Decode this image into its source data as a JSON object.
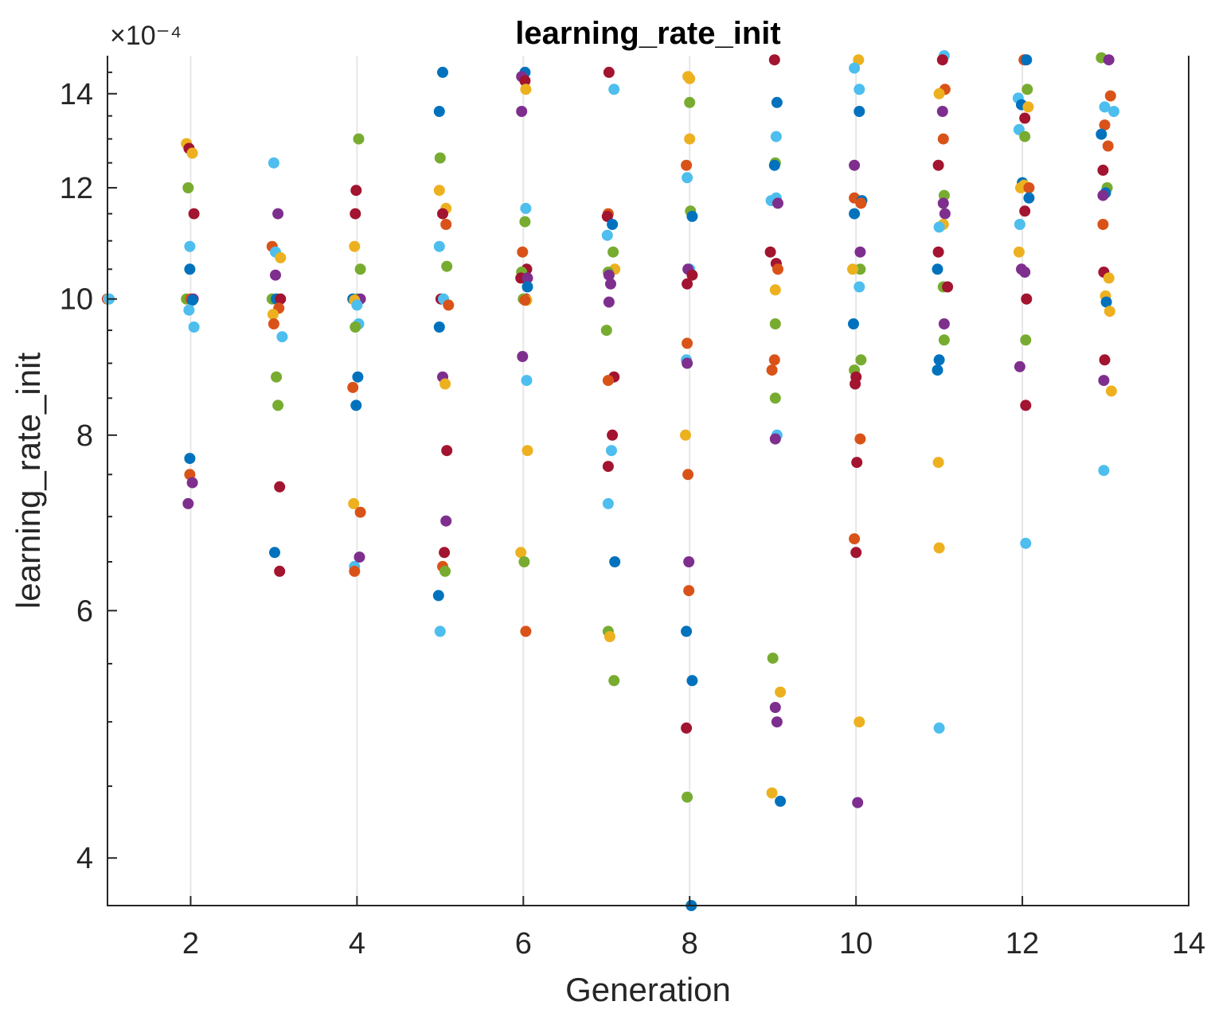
{
  "chart_data": {
    "type": "scatter",
    "title": "learning_rate_init",
    "xlabel": "Generation",
    "ylabel": "learning_rate_init",
    "exponent_label": "×10⁻⁴",
    "y_scale": "log",
    "xlim": [
      1,
      14
    ],
    "ylim": [
      3.7,
      14.9
    ],
    "x_ticks": [
      2,
      4,
      6,
      8,
      10,
      12,
      14
    ],
    "x_tick_labels": [
      "2",
      "4",
      "6",
      "8",
      "10",
      "12",
      "14"
    ],
    "y_ticks": [
      4,
      6,
      8,
      10,
      12,
      14
    ],
    "y_tick_labels": [
      "4",
      "6",
      "8",
      "10",
      "12",
      "14"
    ],
    "grid": "x-major",
    "colors": [
      "#0072BD",
      "#D95319",
      "#EDB120",
      "#7E2F8E",
      "#77AC30",
      "#4DBEEE",
      "#A2142F"
    ],
    "points": [
      [
        1.0,
        10.0,
        6
      ],
      [
        1.01,
        10.0,
        2
      ],
      [
        1.02,
        10.0,
        5
      ],
      [
        1.95,
        12.9,
        2
      ],
      [
        1.98,
        12.8,
        6
      ],
      [
        2.02,
        12.7,
        2
      ],
      [
        1.97,
        12.0,
        4
      ],
      [
        2.04,
        11.5,
        6
      ],
      [
        1.99,
        10.9,
        5
      ],
      [
        1.99,
        10.5,
        0
      ],
      [
        1.95,
        10.0,
        4
      ],
      [
        2.0,
        10.0,
        1
      ],
      [
        2.03,
        10.0,
        3
      ],
      [
        2.02,
        9.98,
        0
      ],
      [
        1.98,
        9.82,
        5
      ],
      [
        2.04,
        9.55,
        5
      ],
      [
        1.99,
        7.7,
        0
      ],
      [
        1.99,
        7.5,
        1
      ],
      [
        2.02,
        7.4,
        3
      ],
      [
        1.97,
        7.15,
        3
      ],
      [
        3.0,
        12.5,
        5
      ],
      [
        3.05,
        11.5,
        3
      ],
      [
        2.98,
        10.9,
        1
      ],
      [
        3.02,
        10.8,
        5
      ],
      [
        3.08,
        10.7,
        2
      ],
      [
        3.02,
        10.4,
        3
      ],
      [
        2.98,
        10.0,
        4
      ],
      [
        3.03,
        10.0,
        0
      ],
      [
        3.08,
        10.0,
        6
      ],
      [
        3.06,
        9.85,
        1
      ],
      [
        2.99,
        9.75,
        2
      ],
      [
        3.0,
        9.6,
        1
      ],
      [
        3.1,
        9.4,
        5
      ],
      [
        3.03,
        8.8,
        4
      ],
      [
        3.05,
        8.4,
        4
      ],
      [
        3.07,
        7.35,
        6
      ],
      [
        3.01,
        6.6,
        0
      ],
      [
        3.07,
        6.4,
        6
      ],
      [
        4.02,
        13.0,
        4
      ],
      [
        3.99,
        11.95,
        6
      ],
      [
        3.98,
        11.5,
        6
      ],
      [
        3.97,
        10.9,
        2
      ],
      [
        4.04,
        10.5,
        4
      ],
      [
        3.95,
        10.0,
        0
      ],
      [
        4.0,
        10.0,
        4
      ],
      [
        4.04,
        10.0,
        3
      ],
      [
        3.97,
        9.98,
        2
      ],
      [
        4.0,
        9.9,
        5
      ],
      [
        4.02,
        9.6,
        5
      ],
      [
        3.98,
        9.55,
        4
      ],
      [
        4.01,
        8.8,
        0
      ],
      [
        3.95,
        8.65,
        1
      ],
      [
        3.99,
        8.4,
        0
      ],
      [
        3.96,
        7.15,
        2
      ],
      [
        4.04,
        7.05,
        1
      ],
      [
        3.97,
        6.45,
        5
      ],
      [
        4.03,
        6.55,
        3
      ],
      [
        3.97,
        6.4,
        1
      ],
      [
        5.03,
        14.5,
        0
      ],
      [
        4.99,
        13.6,
        0
      ],
      [
        5.0,
        12.6,
        4
      ],
      [
        4.99,
        11.95,
        2
      ],
      [
        5.07,
        11.6,
        2
      ],
      [
        5.03,
        11.5,
        6
      ],
      [
        5.07,
        11.3,
        1
      ],
      [
        4.99,
        10.9,
        5
      ],
      [
        5.08,
        10.55,
        4
      ],
      [
        5.01,
        10.0,
        6
      ],
      [
        5.04,
        10.0,
        5
      ],
      [
        5.1,
        9.9,
        1
      ],
      [
        4.99,
        9.55,
        0
      ],
      [
        5.03,
        8.8,
        3
      ],
      [
        5.06,
        8.7,
        2
      ],
      [
        5.08,
        7.8,
        6
      ],
      [
        5.07,
        6.95,
        3
      ],
      [
        5.05,
        6.6,
        6
      ],
      [
        5.03,
        6.45,
        1
      ],
      [
        5.06,
        6.4,
        4
      ],
      [
        4.98,
        6.15,
        0
      ],
      [
        5.0,
        5.8,
        5
      ],
      [
        6.02,
        14.5,
        0
      ],
      [
        5.98,
        14.4,
        3
      ],
      [
        6.02,
        14.3,
        6
      ],
      [
        6.03,
        14.1,
        2
      ],
      [
        5.98,
        13.6,
        3
      ],
      [
        6.03,
        11.6,
        5
      ],
      [
        6.02,
        11.35,
        4
      ],
      [
        5.99,
        10.8,
        1
      ],
      [
        6.04,
        10.5,
        6
      ],
      [
        5.98,
        10.45,
        4
      ],
      [
        5.97,
        10.35,
        6
      ],
      [
        6.05,
        10.35,
        3
      ],
      [
        6.05,
        10.2,
        0
      ],
      [
        6.03,
        10.0,
        6
      ],
      [
        6.0,
        10.0,
        4
      ],
      [
        6.04,
        9.98,
        2
      ],
      [
        6.02,
        9.98,
        1
      ],
      [
        5.99,
        9.1,
        3
      ],
      [
        6.04,
        8.75,
        5
      ],
      [
        6.05,
        7.8,
        2
      ],
      [
        5.97,
        6.6,
        2
      ],
      [
        6.01,
        6.5,
        4
      ],
      [
        6.03,
        5.8,
        1
      ],
      [
        7.03,
        14.5,
        6
      ],
      [
        7.09,
        14.1,
        5
      ],
      [
        7.02,
        11.5,
        1
      ],
      [
        7.01,
        11.45,
        6
      ],
      [
        7.07,
        11.3,
        0
      ],
      [
        7.01,
        11.1,
        5
      ],
      [
        7.08,
        10.8,
        4
      ],
      [
        7.1,
        10.5,
        2
      ],
      [
        7.02,
        10.45,
        4
      ],
      [
        7.03,
        10.4,
        3
      ],
      [
        7.05,
        10.25,
        3
      ],
      [
        7.03,
        9.95,
        3
      ],
      [
        7.0,
        9.5,
        4
      ],
      [
        7.09,
        8.8,
        6
      ],
      [
        7.02,
        8.75,
        1
      ],
      [
        7.07,
        8.0,
        6
      ],
      [
        7.06,
        7.8,
        5
      ],
      [
        7.02,
        7.6,
        6
      ],
      [
        7.02,
        7.15,
        5
      ],
      [
        7.1,
        6.5,
        0
      ],
      [
        7.02,
        5.8,
        4
      ],
      [
        7.04,
        5.75,
        2
      ],
      [
        7.09,
        5.35,
        4
      ],
      [
        7.98,
        14.4,
        2
      ],
      [
        8.0,
        14.35,
        2
      ],
      [
        8.0,
        13.8,
        4
      ],
      [
        8.0,
        13.0,
        2
      ],
      [
        7.96,
        12.45,
        1
      ],
      [
        7.97,
        12.2,
        5
      ],
      [
        8.01,
        11.55,
        4
      ],
      [
        8.03,
        11.45,
        0
      ],
      [
        8.0,
        10.5,
        5
      ],
      [
        7.98,
        10.5,
        3
      ],
      [
        8.03,
        10.4,
        6
      ],
      [
        7.97,
        10.25,
        6
      ],
      [
        7.97,
        9.3,
        1
      ],
      [
        7.96,
        9.05,
        5
      ],
      [
        7.97,
        9.0,
        3
      ],
      [
        7.95,
        8.0,
        2
      ],
      [
        7.98,
        7.5,
        1
      ],
      [
        7.99,
        6.5,
        3
      ],
      [
        7.99,
        6.2,
        1
      ],
      [
        7.96,
        5.8,
        0
      ],
      [
        8.03,
        5.35,
        0
      ],
      [
        7.96,
        4.95,
        6
      ],
      [
        7.97,
        4.42,
        4
      ],
      [
        8.02,
        3.7,
        0
      ],
      [
        9.02,
        14.8,
        6
      ],
      [
        9.05,
        13.8,
        0
      ],
      [
        9.04,
        13.05,
        5
      ],
      [
        9.03,
        12.5,
        4
      ],
      [
        9.02,
        12.45,
        0
      ],
      [
        9.04,
        11.8,
        5
      ],
      [
        8.98,
        11.75,
        5
      ],
      [
        9.06,
        11.7,
        3
      ],
      [
        8.97,
        10.8,
        6
      ],
      [
        9.04,
        10.6,
        6
      ],
      [
        9.06,
        10.5,
        1
      ],
      [
        9.03,
        10.15,
        2
      ],
      [
        9.03,
        9.6,
        4
      ],
      [
        9.02,
        9.05,
        1
      ],
      [
        8.99,
        8.9,
        1
      ],
      [
        9.03,
        8.5,
        4
      ],
      [
        9.05,
        8.0,
        5
      ],
      [
        9.03,
        7.95,
        3
      ],
      [
        9.0,
        5.55,
        4
      ],
      [
        9.09,
        5.25,
        2
      ],
      [
        9.03,
        5.12,
        3
      ],
      [
        9.05,
        5.0,
        3
      ],
      [
        8.99,
        4.45,
        2
      ],
      [
        9.09,
        4.39,
        0
      ],
      [
        10.03,
        14.8,
        2
      ],
      [
        9.98,
        14.6,
        5
      ],
      [
        10.04,
        14.1,
        5
      ],
      [
        10.04,
        13.6,
        0
      ],
      [
        9.98,
        12.45,
        3
      ],
      [
        9.98,
        11.8,
        1
      ],
      [
        10.07,
        11.75,
        0
      ],
      [
        10.06,
        11.7,
        1
      ],
      [
        9.98,
        11.5,
        0
      ],
      [
        10.05,
        10.8,
        3
      ],
      [
        10.05,
        10.5,
        4
      ],
      [
        9.96,
        10.5,
        2
      ],
      [
        10.04,
        10.2,
        5
      ],
      [
        9.97,
        9.6,
        0
      ],
      [
        10.06,
        9.05,
        4
      ],
      [
        9.98,
        8.9,
        4
      ],
      [
        10.0,
        8.8,
        6
      ],
      [
        9.99,
        8.7,
        6
      ],
      [
        10.05,
        7.95,
        1
      ],
      [
        10.01,
        7.65,
        6
      ],
      [
        9.98,
        6.75,
        1
      ],
      [
        10.0,
        6.6,
        6
      ],
      [
        10.04,
        5.0,
        2
      ],
      [
        10.02,
        4.38,
        3
      ],
      [
        11.06,
        14.9,
        5
      ],
      [
        11.04,
        14.8,
        6
      ],
      [
        11.07,
        14.1,
        1
      ],
      [
        11.0,
        14.0,
        2
      ],
      [
        11.04,
        13.6,
        3
      ],
      [
        11.05,
        13.0,
        1
      ],
      [
        10.99,
        12.45,
        6
      ],
      [
        11.06,
        11.85,
        4
      ],
      [
        11.05,
        11.7,
        3
      ],
      [
        11.07,
        11.5,
        3
      ],
      [
        11.05,
        11.3,
        2
      ],
      [
        11.0,
        11.25,
        5
      ],
      [
        10.99,
        10.8,
        6
      ],
      [
        10.98,
        10.5,
        0
      ],
      [
        11.05,
        10.2,
        4
      ],
      [
        11.1,
        10.2,
        6
      ],
      [
        11.06,
        9.6,
        3
      ],
      [
        11.06,
        9.35,
        4
      ],
      [
        11.0,
        9.05,
        0
      ],
      [
        10.98,
        8.9,
        0
      ],
      [
        10.99,
        7.65,
        2
      ],
      [
        11.0,
        6.65,
        2
      ],
      [
        11.0,
        4.95,
        5
      ],
      [
        12.03,
        14.8,
        6
      ],
      [
        12.02,
        14.8,
        1
      ],
      [
        12.05,
        14.8,
        0
      ],
      [
        12.06,
        14.1,
        4
      ],
      [
        11.95,
        13.9,
        5
      ],
      [
        11.99,
        13.75,
        0
      ],
      [
        12.07,
        13.7,
        2
      ],
      [
        12.03,
        13.45,
        6
      ],
      [
        11.96,
        13.2,
        5
      ],
      [
        12.03,
        13.05,
        4
      ],
      [
        12.0,
        12.1,
        0
      ],
      [
        12.02,
        12.05,
        2
      ],
      [
        11.98,
        12.0,
        2
      ],
      [
        12.08,
        12.0,
        1
      ],
      [
        12.08,
        11.8,
        0
      ],
      [
        12.03,
        11.55,
        6
      ],
      [
        11.97,
        11.3,
        5
      ],
      [
        11.96,
        10.8,
        2
      ],
      [
        11.99,
        10.5,
        3
      ],
      [
        12.03,
        10.45,
        3
      ],
      [
        12.05,
        10.0,
        6
      ],
      [
        11.97,
        8.95,
        3
      ],
      [
        12.04,
        9.35,
        4
      ],
      [
        12.04,
        8.4,
        6
      ],
      [
        12.04,
        6.7,
        5
      ],
      [
        12.95,
        14.85,
        4
      ],
      [
        13.04,
        14.8,
        3
      ],
      [
        13.06,
        13.95,
        1
      ],
      [
        12.99,
        13.7,
        5
      ],
      [
        13.1,
        13.6,
        5
      ],
      [
        12.99,
        13.3,
        1
      ],
      [
        12.95,
        13.1,
        0
      ],
      [
        13.03,
        12.85,
        1
      ],
      [
        12.97,
        12.35,
        6
      ],
      [
        13.02,
        12.0,
        4
      ],
      [
        13.0,
        11.9,
        0
      ],
      [
        12.97,
        11.85,
        3
      ],
      [
        12.97,
        11.3,
        1
      ],
      [
        12.98,
        10.45,
        6
      ],
      [
        13.04,
        10.35,
        2
      ],
      [
        13.0,
        10.05,
        2
      ],
      [
        13.01,
        9.95,
        0
      ],
      [
        13.05,
        9.8,
        2
      ],
      [
        12.99,
        9.05,
        6
      ],
      [
        12.98,
        8.75,
        3
      ],
      [
        13.07,
        8.6,
        2
      ],
      [
        12.98,
        7.55,
        5
      ]
    ]
  }
}
